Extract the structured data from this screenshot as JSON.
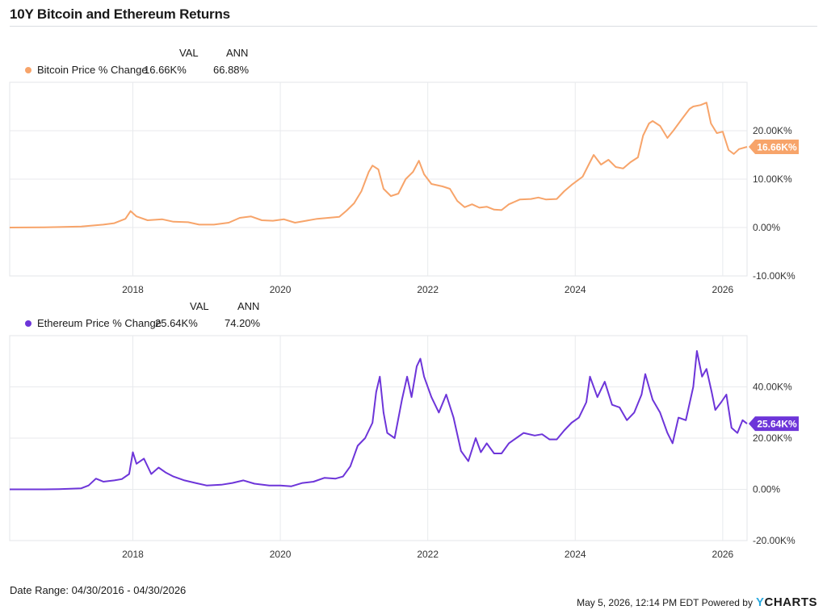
{
  "title": "10Y Bitcoin and Ethereum Returns",
  "chart_data": [
    {
      "type": "line",
      "legend_headers": [
        "VAL",
        "ANN"
      ],
      "series": [
        {
          "name": "Bitcoin Price % Change",
          "color": "#f7a46a",
          "val": "16.66K%",
          "ann": "66.88%",
          "last_label": "16.66K%",
          "points": [
            [
              2016.33,
              0
            ],
            [
              2016.8,
              50
            ],
            [
              2017.0,
              100
            ],
            [
              2017.3,
              200
            ],
            [
              2017.6,
              600
            ],
            [
              2017.75,
              900
            ],
            [
              2017.9,
              1800
            ],
            [
              2017.97,
              3400
            ],
            [
              2018.05,
              2300
            ],
            [
              2018.2,
              1500
            ],
            [
              2018.4,
              1700
            ],
            [
              2018.55,
              1200
            ],
            [
              2018.75,
              1100
            ],
            [
              2018.9,
              600
            ],
            [
              2019.1,
              600
            ],
            [
              2019.3,
              1000
            ],
            [
              2019.45,
              2000
            ],
            [
              2019.6,
              2300
            ],
            [
              2019.75,
              1500
            ],
            [
              2019.9,
              1400
            ],
            [
              2020.05,
              1700
            ],
            [
              2020.2,
              1000
            ],
            [
              2020.35,
              1400
            ],
            [
              2020.5,
              1800
            ],
            [
              2020.65,
              2000
            ],
            [
              2020.8,
              2200
            ],
            [
              2020.9,
              3500
            ],
            [
              2021.0,
              5000
            ],
            [
              2021.1,
              7500
            ],
            [
              2021.2,
              11500
            ],
            [
              2021.25,
              12800
            ],
            [
              2021.33,
              12000
            ],
            [
              2021.4,
              8000
            ],
            [
              2021.5,
              6500
            ],
            [
              2021.6,
              7000
            ],
            [
              2021.7,
              10000
            ],
            [
              2021.8,
              11500
            ],
            [
              2021.88,
              13800
            ],
            [
              2021.95,
              11000
            ],
            [
              2022.05,
              9000
            ],
            [
              2022.2,
              8500
            ],
            [
              2022.3,
              8000
            ],
            [
              2022.4,
              5500
            ],
            [
              2022.5,
              4200
            ],
            [
              2022.6,
              4800
            ],
            [
              2022.7,
              4100
            ],
            [
              2022.8,
              4300
            ],
            [
              2022.9,
              3700
            ],
            [
              2023.0,
              3600
            ],
            [
              2023.1,
              4800
            ],
            [
              2023.25,
              5800
            ],
            [
              2023.4,
              5900
            ],
            [
              2023.5,
              6200
            ],
            [
              2023.6,
              5800
            ],
            [
              2023.75,
              5900
            ],
            [
              2023.85,
              7500
            ],
            [
              2023.95,
              8800
            ],
            [
              2024.1,
              10500
            ],
            [
              2024.2,
              13500
            ],
            [
              2024.25,
              15000
            ],
            [
              2024.35,
              13000
            ],
            [
              2024.45,
              14000
            ],
            [
              2024.55,
              12500
            ],
            [
              2024.65,
              12200
            ],
            [
              2024.75,
              13500
            ],
            [
              2024.85,
              14500
            ],
            [
              2024.92,
              19000
            ],
            [
              2025.0,
              21500
            ],
            [
              2025.05,
              22000
            ],
            [
              2025.15,
              21000
            ],
            [
              2025.25,
              18500
            ],
            [
              2025.33,
              20000
            ],
            [
              2025.45,
              22500
            ],
            [
              2025.55,
              24500
            ],
            [
              2025.6,
              25000
            ],
            [
              2025.7,
              25300
            ],
            [
              2025.78,
              25800
            ],
            [
              2025.84,
              21500
            ],
            [
              2025.92,
              19500
            ],
            [
              2026.0,
              19800
            ],
            [
              2026.08,
              16000
            ],
            [
              2026.15,
              15200
            ],
            [
              2026.22,
              16200
            ],
            [
              2026.33,
              16660
            ]
          ]
        }
      ],
      "yticks": [
        20000,
        10000,
        0,
        -10000
      ],
      "ytick_labels": [
        "20.00K%",
        "10.00K%",
        "0.00%",
        "-10.00K%"
      ],
      "ylim": [
        -10000,
        30000
      ],
      "xticks": [
        2018,
        2020,
        2022,
        2024,
        2026
      ],
      "xtick_labels": [
        "2018",
        "2020",
        "2022",
        "2024",
        "2026"
      ],
      "xlim": [
        2016.33,
        2026.33
      ],
      "grid": true
    },
    {
      "type": "line",
      "legend_headers": [
        "VAL",
        "ANN"
      ],
      "series": [
        {
          "name": "Ethereum Price % Change",
          "color": "#6d35d9",
          "val": "25.64K%",
          "ann": "74.20%",
          "last_label": "25.64K%",
          "points": [
            [
              2016.33,
              0
            ],
            [
              2016.8,
              0
            ],
            [
              2017.0,
              100
            ],
            [
              2017.3,
              400
            ],
            [
              2017.4,
              1500
            ],
            [
              2017.5,
              4200
            ],
            [
              2017.6,
              3000
            ],
            [
              2017.75,
              3500
            ],
            [
              2017.85,
              4000
            ],
            [
              2017.95,
              6000
            ],
            [
              2018.0,
              14500
            ],
            [
              2018.05,
              10000
            ],
            [
              2018.15,
              12000
            ],
            [
              2018.25,
              6000
            ],
            [
              2018.35,
              8500
            ],
            [
              2018.45,
              6500
            ],
            [
              2018.55,
              5000
            ],
            [
              2018.7,
              3500
            ],
            [
              2018.85,
              2500
            ],
            [
              2019.0,
              1500
            ],
            [
              2019.2,
              1800
            ],
            [
              2019.35,
              2500
            ],
            [
              2019.5,
              3500
            ],
            [
              2019.65,
              2200
            ],
            [
              2019.85,
              1500
            ],
            [
              2020.0,
              1500
            ],
            [
              2020.15,
              1200
            ],
            [
              2020.3,
              2500
            ],
            [
              2020.45,
              3000
            ],
            [
              2020.6,
              4500
            ],
            [
              2020.75,
              4200
            ],
            [
              2020.85,
              5000
            ],
            [
              2020.95,
              9000
            ],
            [
              2021.05,
              17000
            ],
            [
              2021.15,
              20000
            ],
            [
              2021.25,
              26000
            ],
            [
              2021.3,
              38000
            ],
            [
              2021.35,
              44000
            ],
            [
              2021.4,
              30000
            ],
            [
              2021.45,
              22000
            ],
            [
              2021.55,
              20000
            ],
            [
              2021.65,
              35000
            ],
            [
              2021.72,
              44000
            ],
            [
              2021.78,
              36000
            ],
            [
              2021.85,
              48000
            ],
            [
              2021.9,
              51000
            ],
            [
              2021.95,
              44000
            ],
            [
              2022.05,
              36000
            ],
            [
              2022.15,
              30000
            ],
            [
              2022.25,
              37000
            ],
            [
              2022.35,
              28000
            ],
            [
              2022.45,
              15000
            ],
            [
              2022.55,
              11000
            ],
            [
              2022.65,
              20000
            ],
            [
              2022.72,
              14500
            ],
            [
              2022.8,
              18000
            ],
            [
              2022.9,
              14000
            ],
            [
              2023.0,
              14000
            ],
            [
              2023.1,
              18000
            ],
            [
              2023.2,
              20000
            ],
            [
              2023.3,
              22000
            ],
            [
              2023.45,
              21000
            ],
            [
              2023.55,
              21500
            ],
            [
              2023.65,
              19500
            ],
            [
              2023.75,
              19500
            ],
            [
              2023.85,
              23000
            ],
            [
              2023.95,
              26000
            ],
            [
              2024.05,
              28000
            ],
            [
              2024.15,
              34000
            ],
            [
              2024.2,
              44000
            ],
            [
              2024.3,
              36000
            ],
            [
              2024.4,
              42000
            ],
            [
              2024.5,
              33000
            ],
            [
              2024.6,
              32000
            ],
            [
              2024.7,
              27000
            ],
            [
              2024.8,
              30000
            ],
            [
              2024.9,
              37000
            ],
            [
              2024.95,
              45000
            ],
            [
              2025.05,
              35000
            ],
            [
              2025.15,
              30000
            ],
            [
              2025.25,
              22000
            ],
            [
              2025.32,
              18000
            ],
            [
              2025.4,
              28000
            ],
            [
              2025.5,
              27000
            ],
            [
              2025.6,
              40000
            ],
            [
              2025.65,
              54000
            ],
            [
              2025.72,
              44000
            ],
            [
              2025.78,
              47000
            ],
            [
              2025.85,
              38000
            ],
            [
              2025.9,
              31000
            ],
            [
              2025.98,
              34000
            ],
            [
              2026.05,
              37000
            ],
            [
              2026.12,
              24000
            ],
            [
              2026.2,
              22000
            ],
            [
              2026.27,
              27000
            ],
            [
              2026.33,
              25640
            ]
          ]
        }
      ],
      "yticks": [
        40000,
        20000,
        0,
        -20000
      ],
      "ytick_labels": [
        "40.00K%",
        "20.00K%",
        "0.00%",
        "-20.00K%"
      ],
      "ylim": [
        -20000,
        60000
      ],
      "xticks": [
        2018,
        2020,
        2022,
        2024,
        2026
      ],
      "xtick_labels": [
        "2018",
        "2020",
        "2022",
        "2024",
        "2026"
      ],
      "xlim": [
        2016.33,
        2026.33
      ],
      "grid": true
    }
  ],
  "footer": {
    "date_range": "Date Range: 04/30/2016 - 04/30/2026",
    "timestamp": "May 5, 2026, 12:14 PM EDT Powered by",
    "brand_y": "Y",
    "brand_rest": "CHARTS"
  }
}
